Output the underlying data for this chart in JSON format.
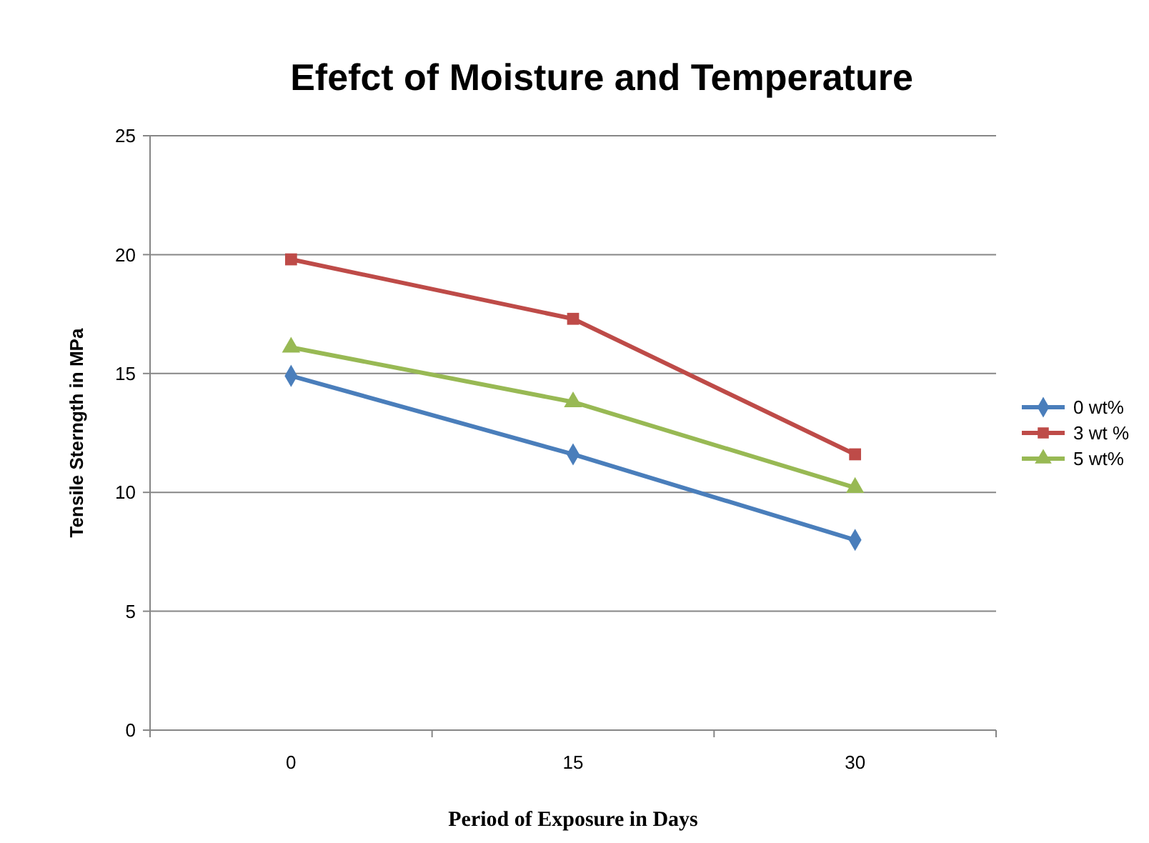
{
  "chart_data": {
    "type": "line",
    "title": "Efefct of Moisture and Temperature",
    "xlabel": "Period of Exposure in Days",
    "ylabel": "Tensile Sterngth in MPa",
    "categories": [
      "0",
      "15",
      "30"
    ],
    "ylim": [
      0,
      25
    ],
    "yticks": [
      0,
      5,
      10,
      15,
      20,
      25
    ],
    "grid": "y",
    "legend": "right",
    "line_style": "solid",
    "series": [
      {
        "name": "0 wt%",
        "color": "#4a7ebb",
        "marker": "diamond",
        "values": [
          14.9,
          11.6,
          8.0
        ]
      },
      {
        "name": "3 wt %",
        "color": "#be4b48",
        "marker": "square",
        "values": [
          19.8,
          17.3,
          11.6
        ]
      },
      {
        "name": "5 wt%",
        "color": "#98b954",
        "marker": "triangle",
        "values": [
          16.1,
          13.8,
          10.2
        ]
      }
    ]
  }
}
